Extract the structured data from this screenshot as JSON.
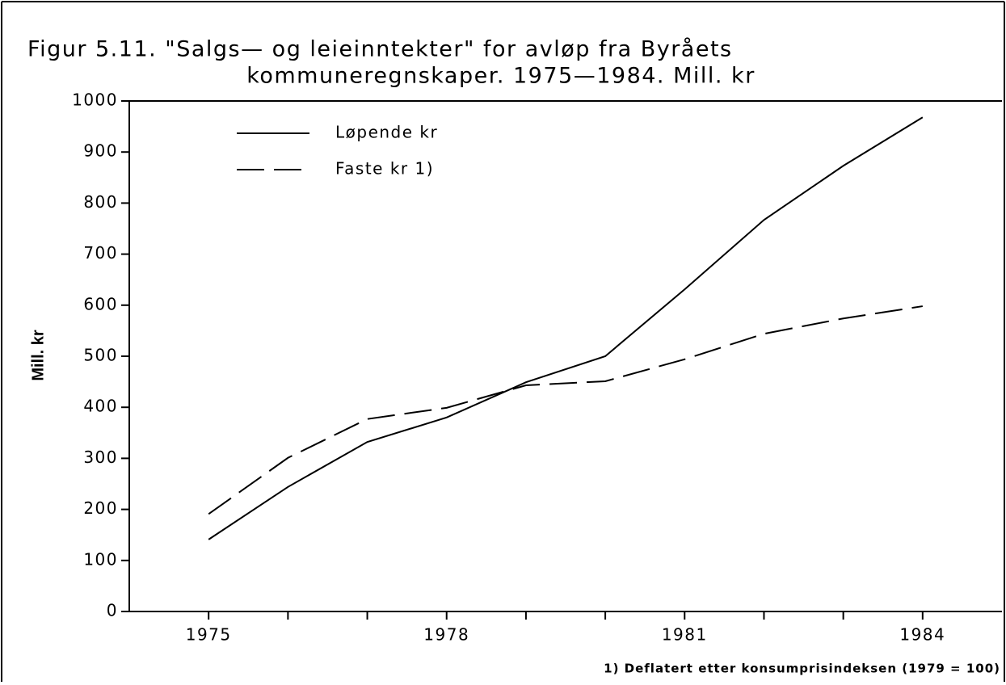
{
  "chart_data": {
    "type": "line",
    "title": [
      "Figur 5.11. \"Salgs— og leieinntekter\" for avløp fra Byråets",
      "kommuneregnskaper. 1975—1984. Mill. kr"
    ],
    "y_label": "Mill. kr",
    "footnote": "1) Deflatert etter konsumprisindeksen (1979 = 100)",
    "x": [
      1975,
      1976,
      1977,
      1978,
      1979,
      1980,
      1981,
      1982,
      1983,
      1984
    ],
    "series": [
      {
        "name": "Løpende kr",
        "color": "#000000",
        "dash": "solid",
        "values": [
          141,
          244,
          332,
          380,
          449,
          500,
          631,
          767,
          873,
          968
        ]
      },
      {
        "name": "Faste kr 1)",
        "color": "#000000",
        "dash": "dashed",
        "values": [
          191,
          301,
          377,
          399,
          443,
          451,
          494,
          544,
          574,
          598
        ]
      }
    ],
    "xlim": [
      1974,
      1985
    ],
    "xticks": [
      1975,
      1978,
      1981,
      1984
    ],
    "xminorticks": [
      1976,
      1977,
      1979,
      1980,
      1982,
      1983
    ],
    "ylim": [
      0,
      1000
    ],
    "yticks": [
      0,
      100,
      200,
      300,
      400,
      500,
      600,
      700,
      800,
      900,
      1000
    ],
    "grid": false,
    "legend": "top-left"
  }
}
